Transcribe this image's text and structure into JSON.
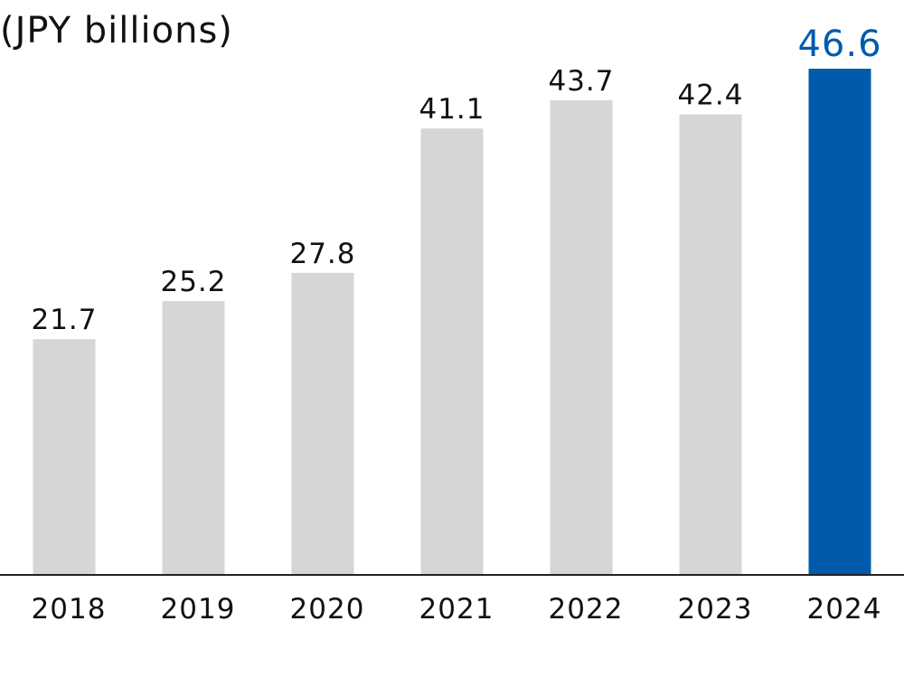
{
  "chart_data": {
    "type": "bar",
    "unit_label": "(JPY billions)",
    "categories": [
      "2018",
      "2019",
      "2020",
      "2021",
      "2022",
      "2023",
      "2024"
    ],
    "values": [
      21.7,
      25.2,
      27.8,
      41.1,
      43.7,
      42.4,
      46.6
    ],
    "value_labels": [
      "21.7",
      "25.2",
      "27.8",
      "41.1",
      "43.7",
      "42.4",
      "46.6"
    ],
    "ylim": [
      0,
      46.6
    ],
    "grid": false,
    "highlight_category": "2024",
    "colors": {
      "bar": "#d6d6d6",
      "highlight_bar": "#005bac",
      "highlight_label": "#005bac",
      "axis": "#222222",
      "text": "#111111"
    }
  }
}
